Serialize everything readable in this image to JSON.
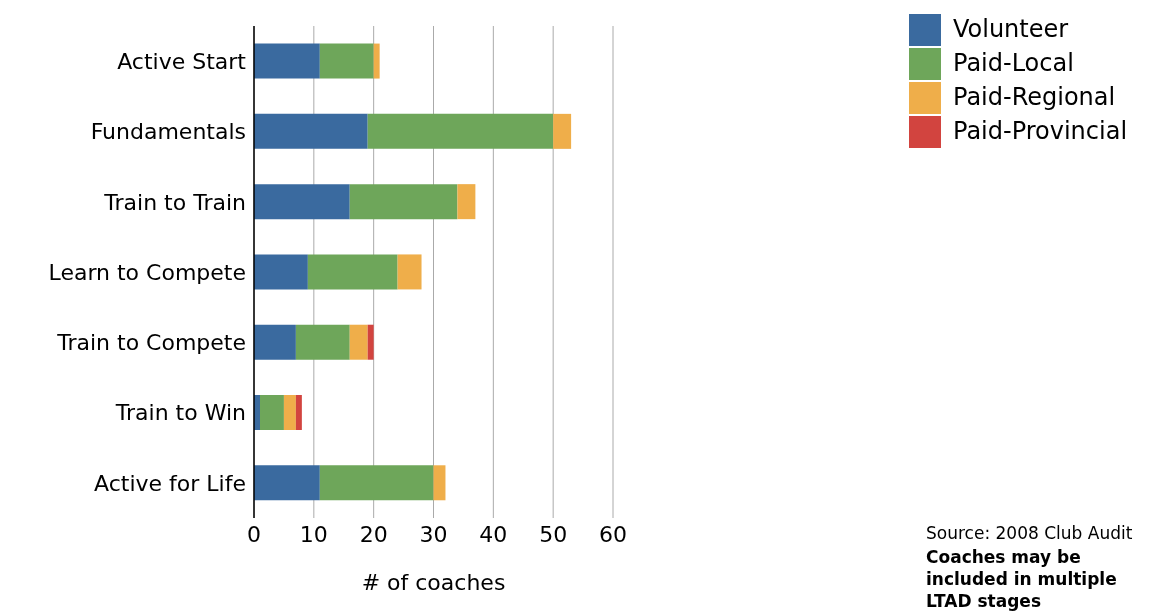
{
  "chart_data": {
    "type": "bar",
    "orientation": "horizontal",
    "stacked": true,
    "categories": [
      "Active Start",
      "Fundamentals",
      "Train to Train",
      "Learn to Compete",
      "Train to Compete",
      "Train to Win",
      "Active for Life"
    ],
    "series": [
      {
        "name": "Volunteer",
        "color": "#3a6a9f",
        "values": [
          11,
          19,
          16,
          9,
          7,
          1,
          11
        ]
      },
      {
        "name": "Paid-Local",
        "color": "#6ea65a",
        "values": [
          9,
          31,
          18,
          15,
          9,
          4,
          19
        ]
      },
      {
        "name": "Paid-Regional",
        "color": "#efae4a",
        "values": [
          1,
          3,
          3,
          4,
          3,
          2,
          2
        ]
      },
      {
        "name": "Paid-Provincial",
        "color": "#d2443f",
        "values": [
          0,
          0,
          0,
          0,
          1,
          1,
          0
        ]
      }
    ],
    "xlim": [
      0,
      60
    ],
    "xticks": [
      0,
      10,
      20,
      30,
      40,
      50,
      60
    ],
    "xlabel": "# of coaches",
    "grid": "x",
    "legend": "top right",
    "annotations": [
      "Source: 2008 Club Audit",
      "Coaches may be included in multiple LTAD stages"
    ]
  }
}
